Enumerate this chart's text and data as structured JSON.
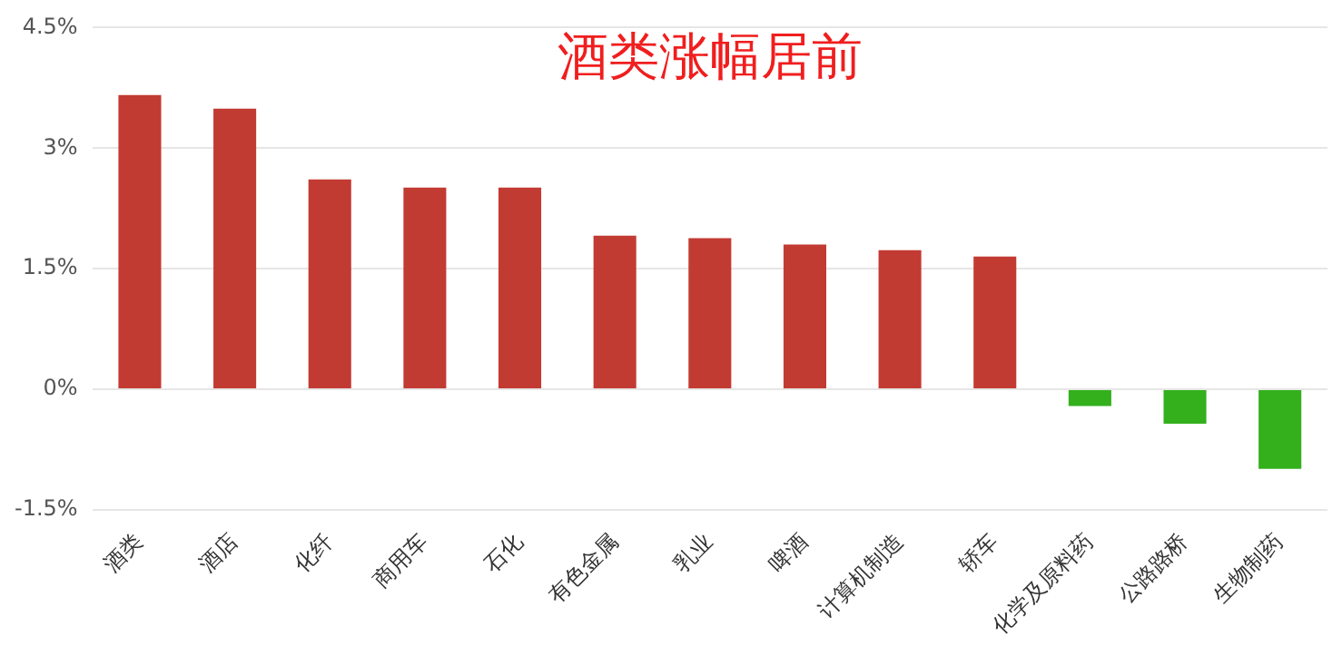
{
  "chart_data": {
    "type": "bar",
    "title": "酒类涨幅居前",
    "categories": [
      "酒类",
      "酒店",
      "化纤",
      "商用车",
      "石化",
      "有色金属",
      "乳业",
      "啤酒",
      "计算机制造",
      "轿车",
      "化学及原料药",
      "公路路桥",
      "生物制药"
    ],
    "values": [
      3.66,
      3.49,
      2.61,
      2.51,
      2.51,
      1.91,
      1.88,
      1.8,
      1.73,
      1.65,
      -0.21,
      -0.43,
      -0.99
    ],
    "colors": [
      "#c23b33",
      "#c23b33",
      "#c23b33",
      "#c23b33",
      "#c23b33",
      "#c23b33",
      "#c23b33",
      "#c23b33",
      "#c23b33",
      "#c23b33",
      "#33b01c",
      "#33b01c",
      "#33b01c"
    ],
    "ylim": [
      -1.5,
      4.5
    ],
    "yticks": [
      {
        "value": -1.5,
        "label": "-1.5%"
      },
      {
        "value": 0,
        "label": "0%"
      },
      {
        "value": 1.5,
        "label": "1.5%"
      },
      {
        "value": 3,
        "label": "3%"
      },
      {
        "value": 4.5,
        "label": "4.5%"
      }
    ],
    "grid": "y",
    "legend": false
  }
}
